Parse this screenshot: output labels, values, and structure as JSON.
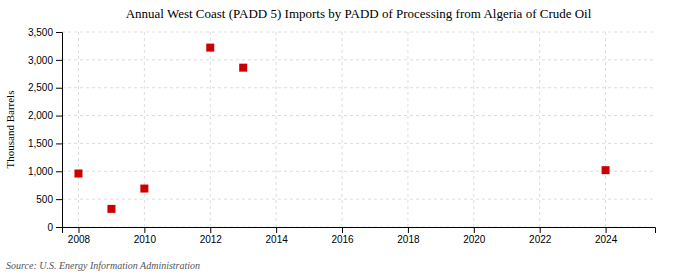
{
  "chart_data": {
    "type": "scatter",
    "title": "Annual West Coast (PADD 5) Imports by PADD of Processing from Algeria of Crude Oil",
    "ylabel": "Thousand Barrels",
    "annotations": [
      "Source: U.S. Energy Information Administration"
    ],
    "x": [
      2008,
      2009,
      2010,
      2012,
      2013,
      2024
    ],
    "values": [
      960,
      325,
      690,
      3220,
      2860,
      1020
    ],
    "color": "#cc0000",
    "marker": "square",
    "xlim": [
      2007.5,
      2025.5
    ],
    "ylim": [
      0,
      3500
    ],
    "xticks": [
      2008,
      2010,
      2012,
      2014,
      2016,
      2018,
      2020,
      2022,
      2024
    ],
    "yticks": [
      0,
      500,
      {
        "value": 1000,
        "label": "1,000"
      },
      {
        "value": 1500,
        "label": "1,500"
      },
      {
        "value": 2000,
        "label": "2,000"
      },
      {
        "value": 2500,
        "label": "2,500"
      },
      {
        "value": 3000,
        "label": "3,000"
      },
      {
        "value": 3500,
        "label": "3,500"
      }
    ],
    "grid": true
  }
}
